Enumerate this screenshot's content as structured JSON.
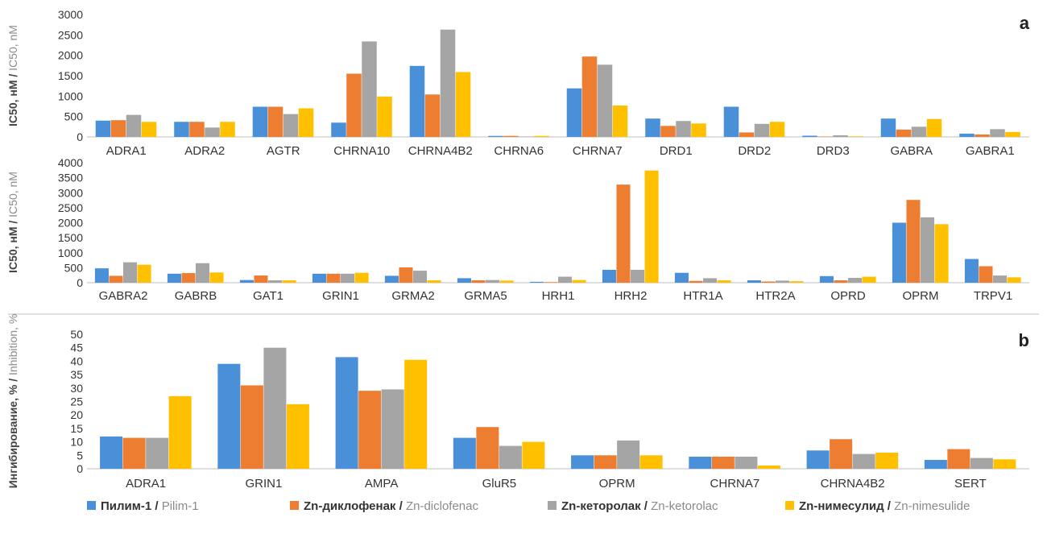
{
  "colors": [
    "#4a90d9",
    "#ed7d31",
    "#a5a5a5",
    "#ffc000"
  ],
  "axis_color": "#bfbfbf",
  "legend": [
    {
      "ru": "Пилим-1",
      "en": "Pilim-1"
    },
    {
      "ru": "Zn-диклофенак",
      "en": "Zn-diclofenac"
    },
    {
      "ru": "Zn-кеторолак",
      "en": "Zn-ketorolac"
    },
    {
      "ru": "Zn-нимесулид",
      "en": "Zn-nimesulide"
    }
  ],
  "chart_data": [
    {
      "type": "bar",
      "panel": "a",
      "ylabel_ru": "IC50, нМ / ",
      "ylabel_en": "IC50, nM",
      "ylim": [
        0,
        3000
      ],
      "yticks": [
        0,
        500,
        1000,
        1500,
        2000,
        2500,
        3000
      ],
      "categories": [
        "ADRA1",
        "ADRA2",
        "AGTR",
        "CHRNA10",
        "CHRNA4B2",
        "CHRNA6",
        "CHRNA7",
        "DRD1",
        "DRD2",
        "DRD3",
        "GABRA",
        "GABRA1"
      ],
      "series": [
        {
          "name": "Pilim-1",
          "values": [
            400,
            370,
            740,
            350,
            1740,
            25,
            1190,
            450,
            740,
            30,
            450,
            80
          ]
        },
        {
          "name": "Zn-diclofenac",
          "values": [
            410,
            370,
            740,
            1550,
            1040,
            25,
            1970,
            270,
            110,
            10,
            180,
            60
          ]
        },
        {
          "name": "Zn-ketorolac",
          "values": [
            540,
            230,
            560,
            2340,
            2630,
            10,
            1770,
            390,
            320,
            40,
            250,
            190
          ]
        },
        {
          "name": "Zn-nimesulide",
          "values": [
            370,
            370,
            700,
            990,
            1590,
            25,
            770,
            330,
            370,
            15,
            440,
            120
          ]
        }
      ]
    },
    {
      "type": "bar",
      "panel": "",
      "ylabel_ru": "IC50, нМ / ",
      "ylabel_en": "IC50, nM",
      "ylim": [
        0,
        4000
      ],
      "yticks": [
        0,
        500,
        1000,
        1500,
        2000,
        2500,
        3000,
        3500,
        4000
      ],
      "categories": [
        "GABRA2",
        "GABRB",
        "GAT1",
        "GRIN1",
        "GRMA2",
        "GRMA5",
        "HRH1",
        "HRH2",
        "HTR1A",
        "HTR2A",
        "OPRD",
        "OPRM",
        "TRPV1"
      ],
      "series": [
        {
          "name": "Pilim-1",
          "values": [
            480,
            300,
            90,
            300,
            230,
            150,
            30,
            430,
            330,
            80,
            220,
            2000,
            790
          ]
        },
        {
          "name": "Zn-diclofenac",
          "values": [
            230,
            320,
            240,
            300,
            510,
            80,
            20,
            3270,
            60,
            40,
            80,
            2760,
            550
          ]
        },
        {
          "name": "Zn-ketorolac",
          "values": [
            680,
            650,
            80,
            300,
            400,
            90,
            200,
            430,
            150,
            70,
            160,
            2180,
            240
          ]
        },
        {
          "name": "Zn-nimesulide",
          "values": [
            600,
            340,
            80,
            330,
            80,
            70,
            90,
            3740,
            80,
            50,
            200,
            1950,
            180
          ]
        }
      ]
    },
    {
      "type": "bar",
      "panel": "b",
      "ylabel_ru": "Ингибирование, % / ",
      "ylabel_en": "Inhibition, %",
      "ylim": [
        0,
        50
      ],
      "yticks": [
        0,
        5,
        10,
        15,
        20,
        25,
        30,
        35,
        40,
        45,
        50
      ],
      "categories": [
        "ADRA1",
        "GRIN1",
        "AMPA",
        "GluR5",
        "OPRM",
        "CHRNA7",
        "CHRNA4B2",
        "SERT"
      ],
      "series": [
        {
          "name": "Pilim-1",
          "values": [
            12,
            39,
            41.5,
            11.5,
            5,
            4.5,
            6.8,
            3.3
          ]
        },
        {
          "name": "Zn-diclofenac",
          "values": [
            11.5,
            31,
            29,
            15.5,
            5,
            4.5,
            11,
            7.3
          ]
        },
        {
          "name": "Zn-ketorolac",
          "values": [
            11.5,
            45,
            29.5,
            8.5,
            10.5,
            4.5,
            5.5,
            4
          ]
        },
        {
          "name": "Zn-nimesulide",
          "values": [
            27,
            24,
            40.5,
            10,
            5,
            1.2,
            6,
            3.5
          ]
        }
      ]
    }
  ]
}
